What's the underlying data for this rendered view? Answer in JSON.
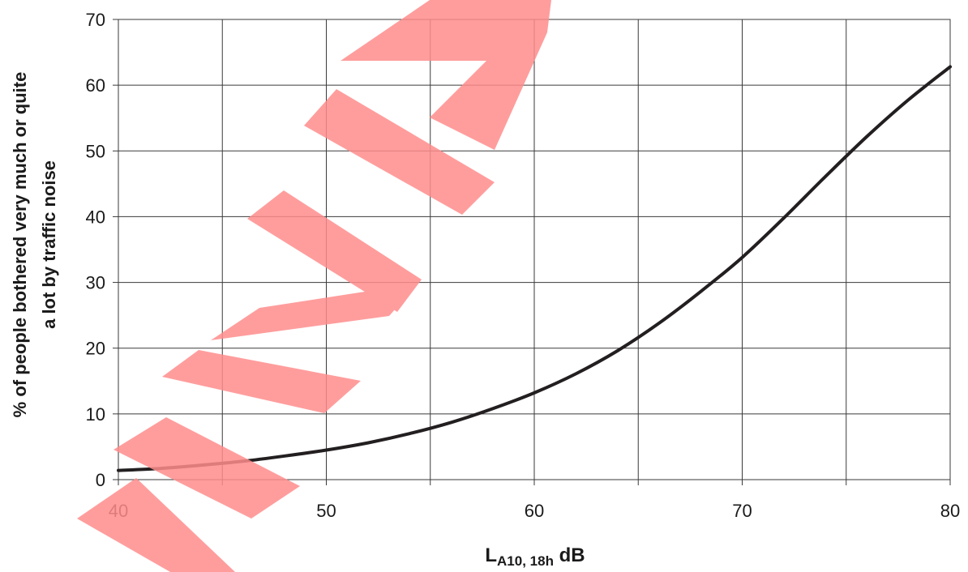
{
  "chart_data": {
    "type": "line",
    "title": "",
    "xlabel": {
      "main": "L",
      "subscript": "A10, 18h",
      "suffix": " dB"
    },
    "ylabel": [
      "% of people bothered very much or quite",
      "a lot by traffic noise"
    ],
    "xlim": [
      40,
      80
    ],
    "ylim": [
      0,
      70
    ],
    "xticks": [
      40,
      50,
      60,
      70,
      80
    ],
    "yticks": [
      0,
      10,
      20,
      30,
      40,
      50,
      60,
      70
    ],
    "xgrid": [
      40,
      45,
      50,
      55,
      60,
      65,
      70,
      75,
      80
    ],
    "grid": true,
    "series": [
      {
        "color": "#231f20",
        "x": [
          40,
          42,
          44,
          46,
          48,
          50,
          52,
          54,
          56,
          58,
          60,
          62,
          64,
          66,
          68,
          70,
          72,
          74,
          76,
          78,
          80
        ],
        "y": [
          1.4,
          1.7,
          2.2,
          2.8,
          3.6,
          4.5,
          5.6,
          7.0,
          8.7,
          10.8,
          13.2,
          16.1,
          19.6,
          23.8,
          28.6,
          33.8,
          39.8,
          46.1,
          52.2,
          57.8,
          62.8
        ]
      }
    ]
  },
  "watermark": {
    "color": "#ff8c8c"
  }
}
